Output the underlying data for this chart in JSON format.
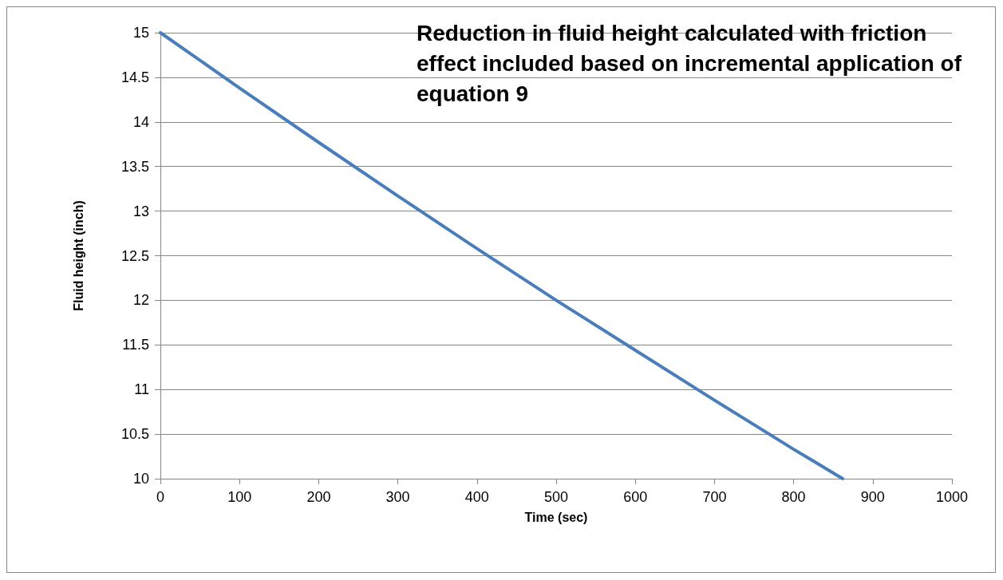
{
  "chart_data": {
    "type": "line",
    "title": "Reduction in fluid height calculated with friction effect included based on incremental application of equation 9",
    "xlabel": "Time (sec)",
    "ylabel": "Fluid height (inch)",
    "x": [
      0,
      100,
      200,
      300,
      400,
      500,
      600,
      700,
      800,
      862
    ],
    "series": [
      {
        "color": "#4a7ebb",
        "values": [
          15,
          14.38,
          13.77,
          13.17,
          12.58,
          12.0,
          11.44,
          10.88,
          10.33,
          10.0
        ]
      }
    ],
    "xlim": [
      0,
      1000
    ],
    "xticks": [
      0,
      100,
      200,
      300,
      400,
      500,
      600,
      700,
      800,
      900,
      1000
    ],
    "ylim": [
      10,
      15
    ],
    "yticks": [
      10,
      10.5,
      11,
      11.5,
      12,
      12.5,
      13,
      13.5,
      14,
      14.5,
      15
    ],
    "grid": "y",
    "marker": "none",
    "line_style": "solid"
  }
}
